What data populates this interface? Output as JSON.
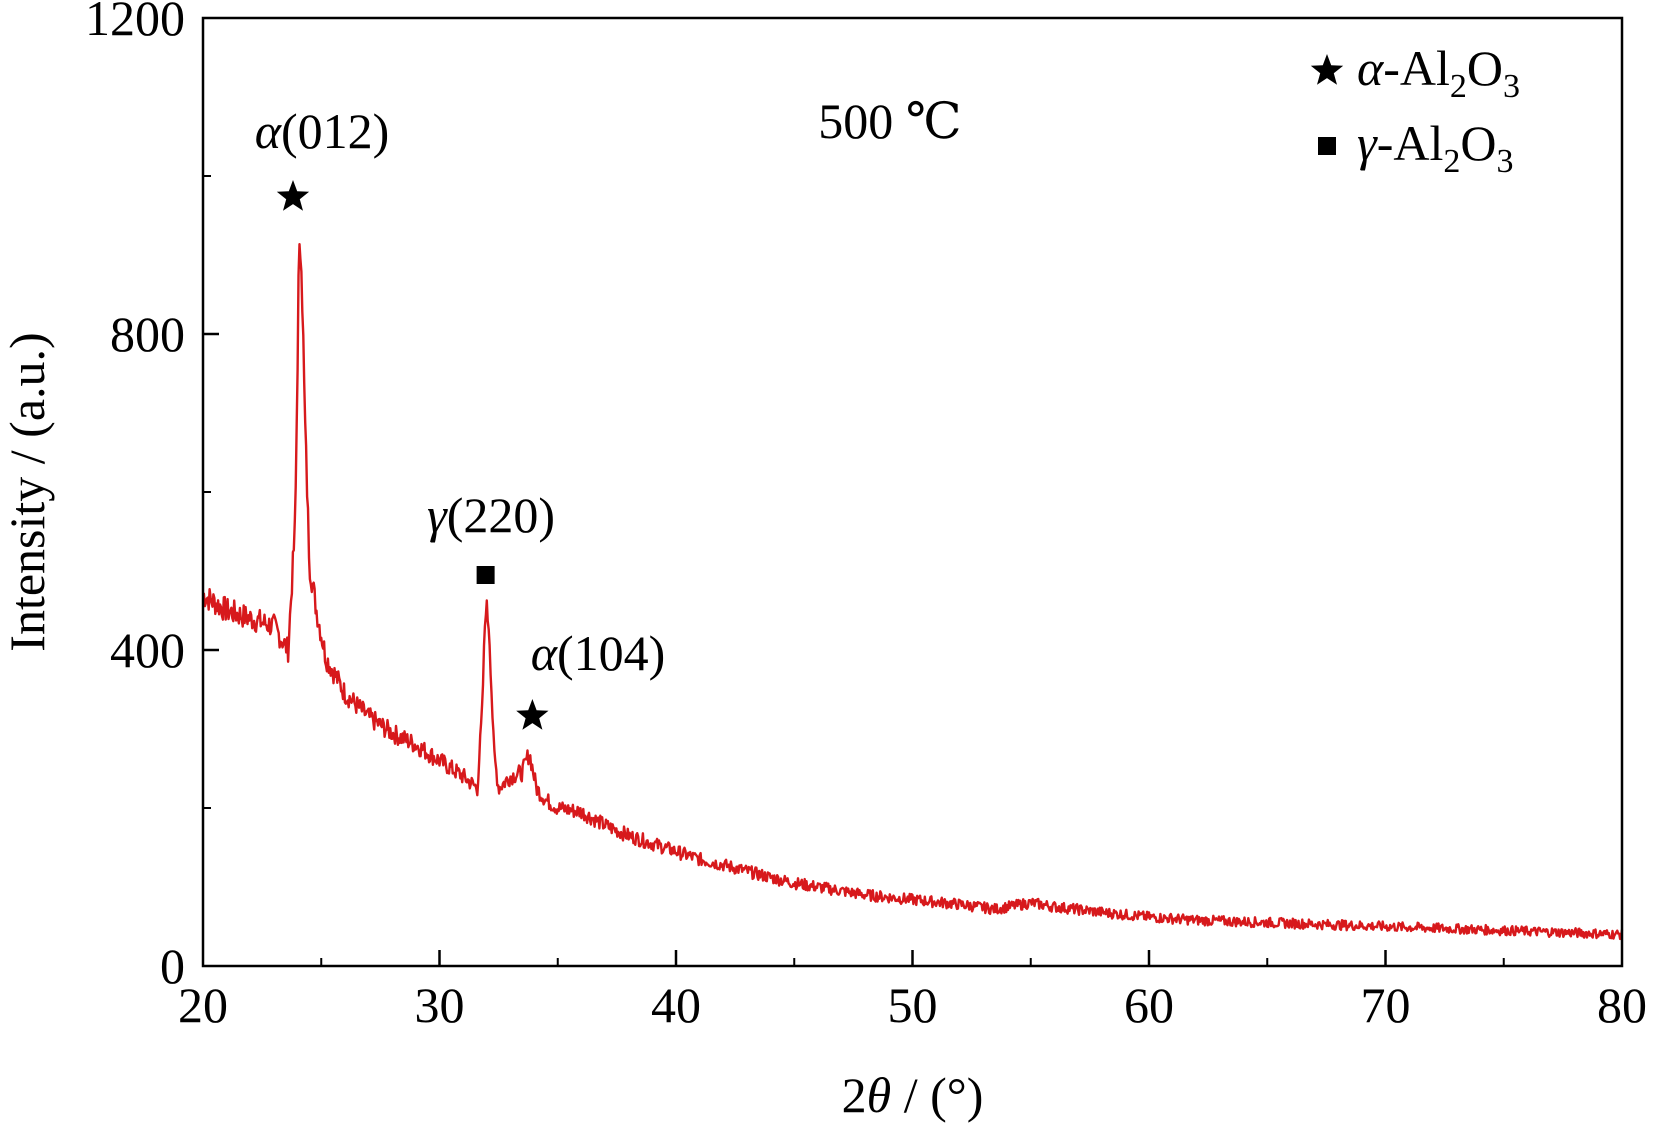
{
  "chart_data": {
    "type": "line",
    "title": "",
    "xlabel": {
      "pre": "2",
      "italic": "θ",
      "post": " / (°)"
    },
    "ylabel": "Intensity / (a.u.)",
    "xlim": [
      20,
      80
    ],
    "ylim": [
      0,
      1200
    ],
    "x_ticks": [
      "20",
      "30",
      "40",
      "50",
      "60",
      "70",
      "80"
    ],
    "y_ticks": [
      "0",
      "400",
      "800",
      "1200"
    ],
    "grid": false,
    "legend_position": "top-right",
    "temperature_label": "500 ℃",
    "series": [
      {
        "color": "#d7191c",
        "x": [
          20,
          21,
          22,
          23,
          23.6,
          23.9,
          24.05,
          24.15,
          24.3,
          24.5,
          24.8,
          25.2,
          26,
          27,
          28,
          29,
          30,
          31,
          31.6,
          31.8,
          31.95,
          32.1,
          32.3,
          32.5,
          33,
          33.5,
          33.8,
          34.1,
          34.5,
          35,
          36,
          37,
          38,
          39,
          40,
          41,
          42,
          43,
          44,
          45,
          46,
          47,
          48,
          49,
          50,
          52,
          53.5,
          55,
          56,
          58,
          60,
          62,
          64,
          66,
          68,
          70,
          72,
          74,
          76,
          78,
          80
        ],
        "y": [
          470,
          450,
          440,
          430,
          400,
          560,
          880,
          920,
          700,
          510,
          450,
          390,
          345,
          315,
          295,
          280,
          260,
          240,
          225,
          320,
          460,
          430,
          270,
          225,
          240,
          245,
          270,
          225,
          210,
          200,
          195,
          178,
          165,
          155,
          145,
          135,
          128,
          120,
          112,
          105,
          100,
          95,
          90,
          87,
          84,
          78,
          72,
          80,
          75,
          68,
          62,
          58,
          56,
          54,
          52,
          50,
          48,
          46,
          44,
          42,
          40
        ],
        "noise": 10
      }
    ],
    "annotations": [
      {
        "sym": "α",
        "text": "(012)",
        "x": 24.1,
        "marker": "star"
      },
      {
        "sym": "γ",
        "text": "(220)",
        "x": 31.95,
        "marker": "square"
      },
      {
        "sym": "α",
        "text": "(104)",
        "x": 33.8,
        "marker": "star"
      }
    ],
    "legend": [
      {
        "marker": "star",
        "sym": "α",
        "pre": "-Al",
        "sub1": "2",
        "mid": "O",
        "sub2": "3"
      },
      {
        "marker": "square",
        "sym": "γ",
        "pre": "-Al",
        "sub1": "2",
        "mid": "O",
        "sub2": "3"
      }
    ]
  }
}
